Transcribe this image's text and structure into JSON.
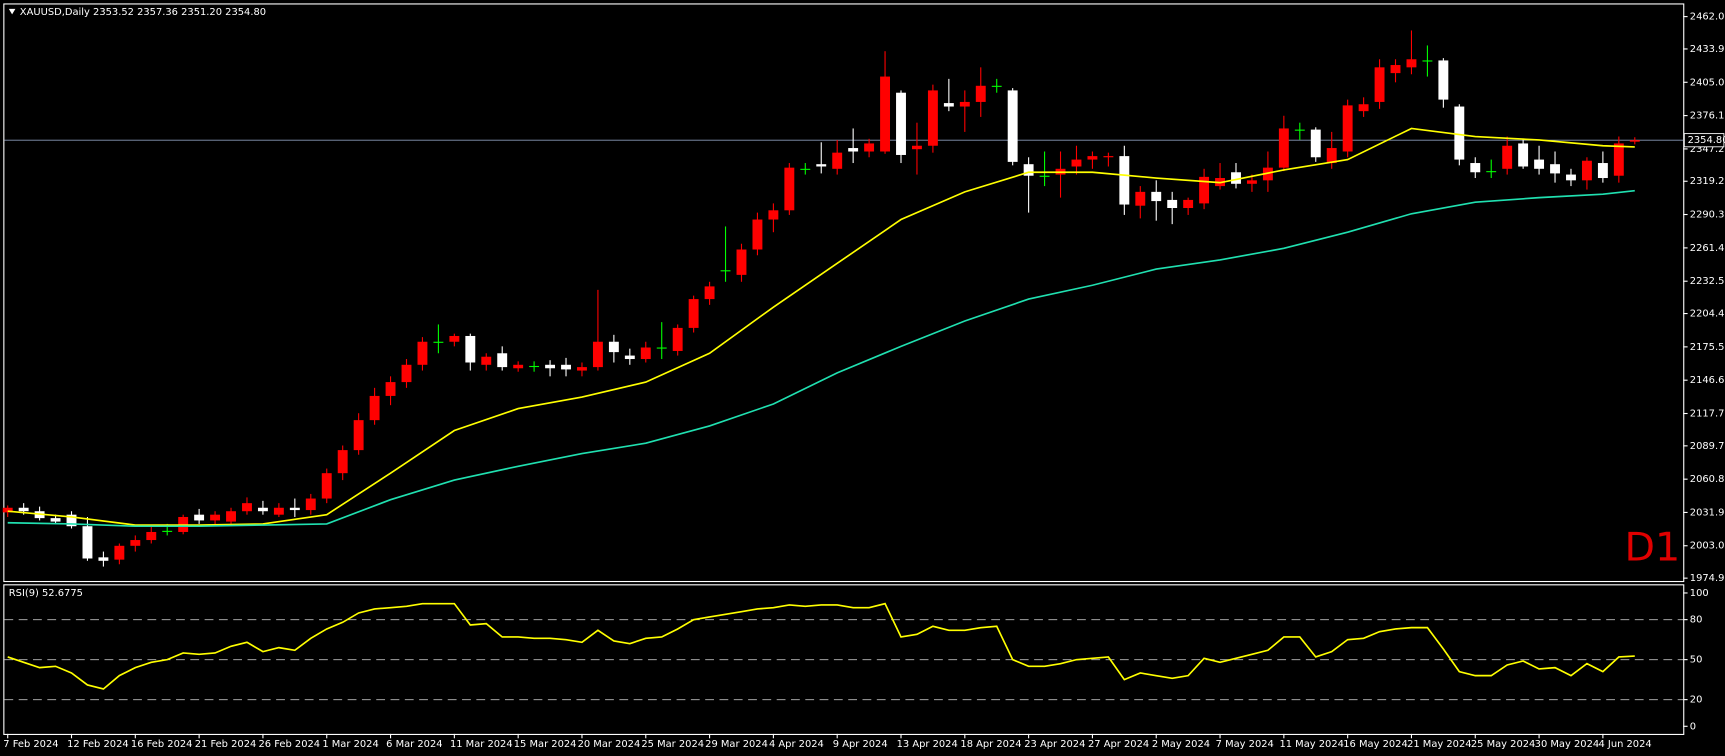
{
  "chart_data": {
    "type": "candlestick",
    "title": "XAUUSD,Daily  2353.52 2357.36 2351.20 2354.80",
    "annotation": "D1",
    "up_color": "#ff0000",
    "down_color": "#ffffff",
    "doji_color": "#00ff00",
    "categories": [
      "7 Feb 2024",
      null,
      null,
      null,
      "12 Feb 2024",
      null,
      null,
      null,
      "16 Feb 2024",
      null,
      null,
      null,
      "21 Feb 2024",
      null,
      null,
      null,
      "26 Feb 2024",
      null,
      null,
      null,
      "1 Mar 2024",
      null,
      null,
      null,
      "6 Mar 2024",
      null,
      null,
      null,
      "11 Mar 2024",
      null,
      null,
      null,
      "15 Mar 2024",
      null,
      null,
      null,
      "20 Mar 2024",
      null,
      null,
      null,
      "25 Mar 2024",
      null,
      null,
      null,
      "29 Mar 2024",
      null,
      null,
      null,
      "4 Apr 2024",
      null,
      null,
      null,
      "9 Apr 2024",
      null,
      null,
      null,
      "13 Apr 2024",
      null,
      null,
      null,
      "18 Apr 2024",
      null,
      null,
      null,
      "23 Apr 2024",
      null,
      null,
      null,
      "27 Apr 2024",
      null,
      null,
      null,
      "2 May 2024",
      null,
      null,
      null,
      "7 May 2024",
      null,
      null,
      null,
      "11 May 2024",
      null,
      null,
      null,
      "16 May 2024",
      null,
      null,
      null,
      "21 May 2024",
      null,
      null,
      null,
      "25 May 2024",
      null,
      null,
      null,
      "30 May 2024",
      null,
      null,
      null,
      "4 Jun 2024",
      null,
      null
    ],
    "open": [
      2032,
      2036,
      2033,
      2027,
      2030,
      2020,
      1993,
      1991,
      2003,
      2008,
      2016,
      2015,
      2030,
      2025,
      2024,
      2033,
      2036,
      2030,
      2036,
      2034,
      2044,
      2066,
      2086,
      2112,
      2133,
      2145,
      2160,
      2180,
      2180,
      2185,
      2160,
      2170,
      2157,
      2159,
      2160,
      2160,
      2155,
      2158,
      2180,
      2168,
      2165,
      2175,
      2172,
      2192,
      2217,
      2242,
      2238,
      2260,
      2286,
      2294,
      2330,
      2334,
      2330,
      2348,
      2345,
      2345,
      2396,
      2347,
      2350,
      2387,
      2384,
      2388,
      2402,
      2398,
      2334,
      2324,
      2325,
      2332,
      2338,
      2340,
      2341,
      2298,
      2310,
      2303,
      2296,
      2300,
      2315,
      2327,
      2317,
      2320,
      2331,
      2364,
      2364,
      2335,
      2345,
      2380,
      2388,
      2413,
      2418,
      2424,
      2424,
      2384,
      2335,
      2328,
      2330,
      2352,
      2338,
      2334,
      2325,
      2320,
      2335,
      2324,
      2353.52
    ],
    "high": [
      2038,
      2040,
      2037,
      2030,
      2033,
      2028,
      1998,
      2005,
      2012,
      2020,
      2022,
      2030,
      2035,
      2033,
      2036,
      2045,
      2042,
      2040,
      2044,
      2048,
      2070,
      2090,
      2118,
      2140,
      2150,
      2165,
      2184,
      2195,
      2187,
      2187,
      2170,
      2176,
      2163,
      2163,
      2164,
      2166,
      2162,
      2225,
      2186,
      2174,
      2180,
      2197,
      2195,
      2220,
      2232,
      2280,
      2265,
      2292,
      2300,
      2335,
      2335,
      2353,
      2355,
      2365,
      2356,
      2432,
      2398,
      2370,
      2403,
      2408,
      2398,
      2418,
      2408,
      2400,
      2340,
      2345,
      2345,
      2350,
      2345,
      2344,
      2350,
      2315,
      2320,
      2310,
      2305,
      2330,
      2335,
      2335,
      2325,
      2345,
      2376,
      2370,
      2366,
      2362,
      2390,
      2392,
      2425,
      2425,
      2450,
      2437,
      2426,
      2386,
      2340,
      2338,
      2358,
      2356,
      2350,
      2345,
      2330,
      2340,
      2345,
      2358,
      2357.36
    ],
    "low": [
      2028,
      2030,
      2025,
      2022,
      2018,
      1990,
      1985,
      1987,
      1998,
      2005,
      2012,
      2013,
      2022,
      2020,
      2020,
      2030,
      2030,
      2028,
      2028,
      2030,
      2040,
      2060,
      2082,
      2108,
      2125,
      2140,
      2155,
      2170,
      2176,
      2155,
      2155,
      2155,
      2154,
      2154,
      2150,
      2150,
      2150,
      2155,
      2162,
      2160,
      2162,
      2165,
      2168,
      2188,
      2212,
      2232,
      2232,
      2255,
      2275,
      2290,
      2325,
      2326,
      2325,
      2335,
      2340,
      2343,
      2335,
      2325,
      2344,
      2380,
      2362,
      2375,
      2396,
      2333,
      2292,
      2315,
      2305,
      2325,
      2330,
      2332,
      2290,
      2287,
      2285,
      2282,
      2290,
      2295,
      2312,
      2313,
      2310,
      2310,
      2328,
      2355,
      2336,
      2330,
      2340,
      2375,
      2382,
      2405,
      2412,
      2410,
      2383,
      2333,
      2322,
      2322,
      2325,
      2330,
      2325,
      2318,
      2315,
      2312,
      2318,
      2318,
      2351.2
    ],
    "close": [
      2036,
      2033,
      2027,
      2024,
      2020,
      1992,
      1990,
      2003,
      2008,
      2015,
      2016,
      2028,
      2025,
      2030,
      2033,
      2040,
      2033,
      2036,
      2034,
      2044,
      2066,
      2086,
      2112,
      2133,
      2145,
      2160,
      2180,
      2180,
      2185,
      2162,
      2167,
      2158,
      2160,
      2159,
      2157,
      2156,
      2158,
      2180,
      2171,
      2165,
      2175,
      2175,
      2192,
      2217,
      2228,
      2242,
      2260,
      2286,
      2294,
      2331,
      2330,
      2332,
      2344,
      2345,
      2352,
      2410,
      2342,
      2350,
      2398,
      2384,
      2388,
      2402,
      2402,
      2336,
      2324,
      2324,
      2330,
      2338,
      2341,
      2341,
      2299,
      2310,
      2302,
      2296,
      2303,
      2323,
      2322,
      2317,
      2320,
      2331,
      2365,
      2364,
      2340,
      2348,
      2385,
      2386,
      2418,
      2420,
      2425,
      2424,
      2390,
      2338,
      2327,
      2328,
      2350,
      2332,
      2330,
      2326,
      2320,
      2337,
      2322,
      2352,
      2354.8
    ],
    "ylim": [
      1972.5,
      2472.5
    ],
    "yticks": [
      {
        "value": 2462,
        "label": "2462.00"
      },
      2433.95,
      2405.05,
      2376.15,
      2347.25,
      {
        "value": 2319.2,
        "label": "2319.20"
      },
      2290.35,
      {
        "value": 2261.4,
        "label": "2261.40"
      },
      {
        "value": 2232.5,
        "label": "2232.50"
      },
      2204.45,
      2175.55,
      2146.65,
      2117.75,
      {
        "value": 2089.7,
        "label": "2089.70"
      },
      {
        "value": 2060.8,
        "label": "2060.80"
      },
      2031.95,
      2003.05,
      1974.95
    ],
    "current_price": {
      "value": 2354.8,
      "label": "2354.80"
    },
    "overlays": [
      {
        "color": "#ffff00",
        "x": [
          0,
          4,
          8,
          12,
          16,
          20,
          24,
          28,
          32,
          36,
          40,
          44,
          48,
          52,
          56,
          60,
          64,
          68,
          72,
          76,
          80,
          84,
          88,
          92,
          96,
          100,
          102
        ],
        "values": [
          2033,
          2028,
          2021,
          2021,
          2022,
          2030,
          2066,
          2103,
          2122,
          2132,
          2145,
          2170,
          2210,
          2248,
          2286,
          2310,
          2327,
          2327,
          2322,
          2318,
          2329,
          2338,
          2365,
          2358,
          2355,
          2350,
          2349
        ]
      },
      {
        "color": "#20e0b0",
        "x": [
          0,
          4,
          8,
          12,
          16,
          20,
          24,
          28,
          32,
          36,
          40,
          44,
          48,
          52,
          56,
          60,
          64,
          68,
          72,
          76,
          80,
          84,
          88,
          92,
          96,
          100,
          102
        ],
        "values": [
          2023,
          2022,
          2020,
          2020,
          2021,
          2022,
          2043,
          2060,
          2072,
          2083,
          2092,
          2107,
          2126,
          2153,
          2176,
          2198,
          2217,
          2229,
          2243,
          2251,
          2261,
          2275,
          2291,
          2301,
          2305,
          2308,
          2311
        ]
      }
    ],
    "rsi": {
      "type": "line",
      "title": "RSI(9) 52.6775",
      "color": "#ffff00",
      "values": [
        52,
        48,
        44,
        45,
        40,
        31,
        28,
        38,
        44,
        48,
        50,
        55,
        54,
        55,
        60,
        63,
        56,
        59,
        57,
        66,
        73,
        78,
        85,
        88,
        89,
        90,
        92,
        92,
        92,
        76,
        77,
        67,
        67,
        66,
        66,
        65,
        63,
        72,
        64,
        62,
        66,
        67,
        73,
        80,
        82,
        84,
        86,
        88,
        89,
        91,
        90,
        91,
        91,
        89,
        89,
        92,
        67,
        69,
        75,
        72,
        72,
        74,
        75,
        50,
        45,
        45,
        47,
        50,
        51,
        52,
        35,
        40,
        38,
        36,
        38,
        51,
        48,
        51,
        54,
        57,
        67,
        67,
        52,
        56,
        65,
        66,
        71,
        73,
        74,
        74,
        58,
        41,
        38,
        38,
        46,
        49,
        43,
        44,
        38,
        47,
        41,
        52,
        52.6775
      ],
      "ylim": [
        -5.7,
        105.7
      ],
      "yticks": [
        100,
        80,
        50,
        20,
        0
      ],
      "levels": [
        20,
        50,
        80
      ]
    }
  }
}
